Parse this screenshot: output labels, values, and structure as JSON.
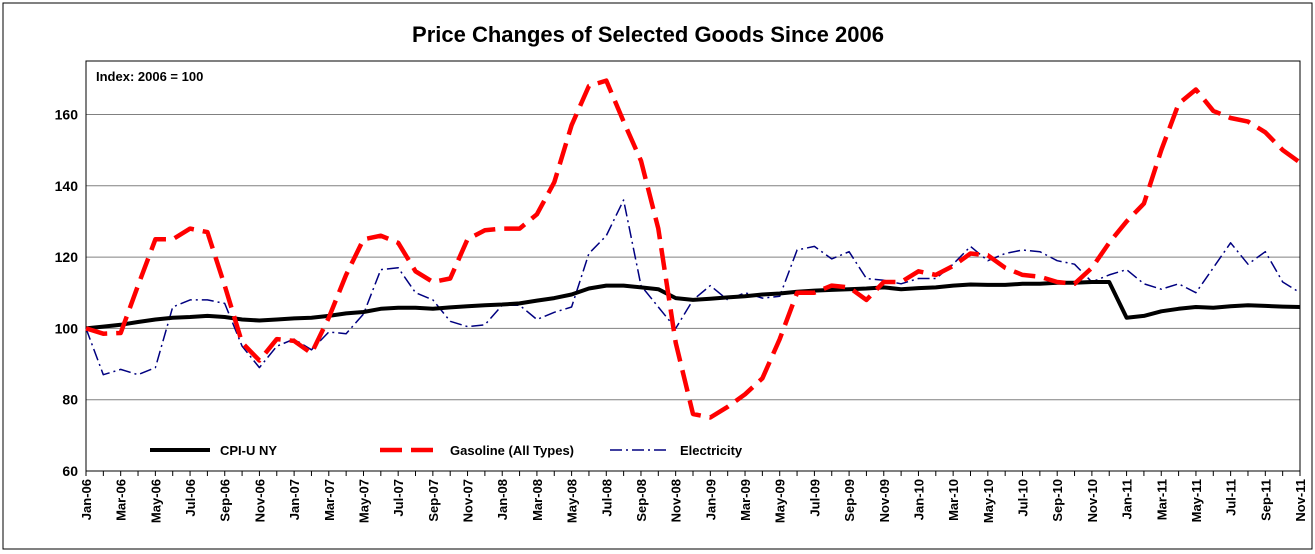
{
  "chart_data": {
    "type": "line",
    "title": "Price Changes of Selected Goods Since 2006",
    "annotation": "Index: 2006 = 100",
    "xlabel": "",
    "ylabel": "",
    "ylim": [
      60,
      175
    ],
    "yticks": [
      60,
      80,
      100,
      120,
      140,
      160
    ],
    "grid": true,
    "legend_position": "bottom-left",
    "x": [
      "Jan-06",
      "Feb-06",
      "Mar-06",
      "Apr-06",
      "May-06",
      "Jun-06",
      "Jul-06",
      "Aug-06",
      "Sep-06",
      "Oct-06",
      "Nov-06",
      "Dec-06",
      "Jan-07",
      "Feb-07",
      "Mar-07",
      "Apr-07",
      "May-07",
      "Jun-07",
      "Jul-07",
      "Aug-07",
      "Sep-07",
      "Oct-07",
      "Nov-07",
      "Dec-07",
      "Jan-08",
      "Feb-08",
      "Mar-08",
      "Apr-08",
      "May-08",
      "Jun-08",
      "Jul-08",
      "Aug-08",
      "Sep-08",
      "Oct-08",
      "Nov-08",
      "Dec-08",
      "Jan-09",
      "Feb-09",
      "Mar-09",
      "Apr-09",
      "May-09",
      "Jun-09",
      "Jul-09",
      "Aug-09",
      "Sep-09",
      "Oct-09",
      "Nov-09",
      "Dec-09",
      "Jan-10",
      "Feb-10",
      "Mar-10",
      "Apr-10",
      "May-10",
      "Jun-10",
      "Jul-10",
      "Aug-10",
      "Sep-10",
      "Oct-10",
      "Nov-10",
      "Dec-10",
      "Jan-11",
      "Feb-11",
      "Mar-11",
      "Apr-11",
      "May-11",
      "Jun-11",
      "Jul-11",
      "Aug-11",
      "Sep-11",
      "Oct-11",
      "Nov-11"
    ],
    "series": [
      {
        "name": "CPI-U NY",
        "color": "#000000",
        "style": "solid",
        "values": [
          100,
          100.5,
          101,
          101.8,
          102.5,
          103,
          103.2,
          103.5,
          103.2,
          102.5,
          102.2,
          102.5,
          102.8,
          103,
          103.5,
          104.2,
          104.6,
          105.5,
          105.8,
          105.8,
          105.5,
          105.9,
          106.2,
          106.5,
          106.7,
          107,
          107.8,
          108.5,
          109.5,
          111.2,
          112,
          112,
          111.5,
          111,
          108.5,
          108,
          108.3,
          108.7,
          109,
          109.5,
          109.8,
          110.3,
          110.6,
          110.8,
          111,
          111.2,
          111.5,
          111,
          111.3,
          111.5,
          112,
          112.3,
          112.2,
          112.2,
          112.5,
          112.5,
          112.8,
          112.8,
          113,
          113,
          103,
          103.5,
          104.8,
          105.5,
          106,
          105.8,
          106.2,
          106.5,
          106.3,
          106.1,
          106
        ]
      },
      {
        "name": "Gasoline (All Types)",
        "color": "#ff0000",
        "style": "dashed",
        "values": [
          100,
          98.5,
          98.7,
          112,
          125,
          125,
          128,
          127,
          112,
          96,
          91,
          97,
          96.5,
          93,
          103,
          115,
          125,
          126,
          124,
          116,
          113,
          114,
          125,
          127.5,
          128,
          128,
          132,
          141,
          157,
          168,
          169.5,
          158,
          147,
          128,
          96,
          76,
          75,
          78,
          81.5,
          86,
          97,
          110,
          110,
          112,
          111.5,
          108,
          113,
          113,
          116,
          115,
          117.5,
          121,
          120.5,
          117,
          115,
          114.5,
          113,
          112.5,
          117,
          124,
          130,
          135,
          150,
          163,
          167,
          161,
          159,
          158,
          155,
          150,
          146.5
        ]
      },
      {
        "name": "Electricity",
        "color": "#000080",
        "style": "dashdot",
        "values": [
          100,
          87,
          88.5,
          87,
          89,
          106,
          108,
          108,
          107,
          95,
          89,
          95,
          97,
          94,
          99,
          98.5,
          104,
          116.5,
          117,
          110,
          108,
          102,
          100.5,
          101,
          106.5,
          106.5,
          102.5,
          104.5,
          106,
          121,
          126,
          136,
          112,
          106,
          100,
          108,
          112,
          108,
          110,
          108.5,
          109,
          122,
          123,
          119.5,
          121.5,
          114,
          113.5,
          112.5,
          114,
          114,
          118,
          123,
          119,
          121,
          122,
          121.5,
          119,
          118,
          113,
          115,
          116.5,
          112.5,
          111,
          112.5,
          110,
          117,
          124,
          118,
          121.5,
          113,
          110
        ]
      }
    ]
  }
}
